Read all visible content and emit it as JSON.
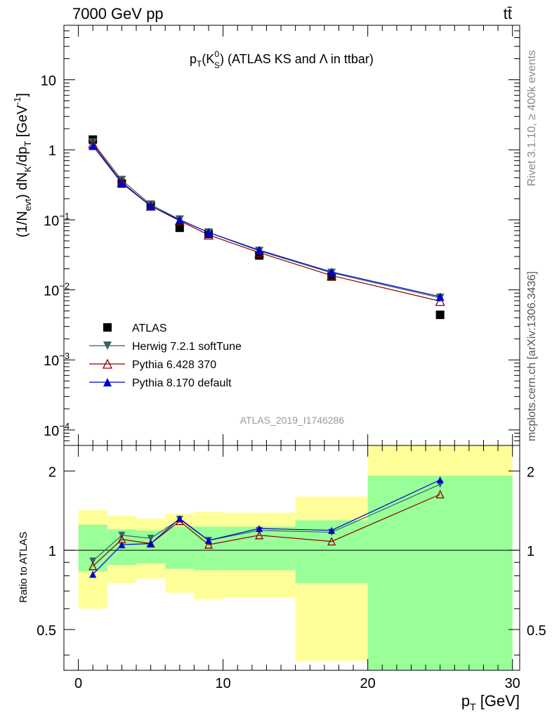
{
  "header": {
    "left_label": "7000 GeV pp",
    "right_label": "tt̄"
  },
  "side_text": {
    "rivet": "Rivet 3.1.10, ≥ 400k events",
    "mcplots": "mcplots.cern.ch [arXiv:1306.3436]"
  },
  "chart_data": [
    {
      "type": "line",
      "name": "main",
      "title": "pT(K0S) (ATLAS KS and Λ in ttbar)",
      "title_parts": {
        "p": "p",
        "T": "T",
        "paren_open": "(K",
        "zero": "0",
        "S": "S",
        "rest": ") (ATLAS KS and Λ in ttbar)"
      },
      "ylabel": "(1/Nevt) dNK/dpT [GeV-1]",
      "ylabel_parts": {
        "a": "(1/N",
        "evt": "evt",
        "b": ") dN",
        "K": "K",
        "c": "/dp",
        "T": "T",
        "d": " [GeV",
        "sup": "-1",
        "e": "]"
      },
      "yscale": "log",
      "ylim": [
        6e-05,
        60
      ],
      "xlim": [
        -1,
        30.5
      ],
      "y_ticks": [
        {
          "v": 10,
          "label": "10",
          "sup": ""
        },
        {
          "v": 1,
          "label": "1",
          "sup": ""
        },
        {
          "v": 0.1,
          "label": "10",
          "sup": "−1"
        },
        {
          "v": 0.01,
          "label": "10",
          "sup": "−2"
        },
        {
          "v": 0.001,
          "label": "10",
          "sup": "−3"
        },
        {
          "v": 0.0001,
          "label": "10",
          "sup": "−4"
        }
      ],
      "watermark": "ATLAS_2019_I1746286",
      "legend_position": "middle-left",
      "x": [
        1,
        3,
        5,
        7,
        9,
        12.5,
        17.5,
        25
      ],
      "series": [
        {
          "name": "ATLAS",
          "color": "#000000",
          "marker": "square",
          "values": [
            1.4,
            0.33,
            0.16,
            0.077,
            0.063,
            0.031,
            0.0155,
            0.0044
          ]
        },
        {
          "name": "Herwig 7.2.1 softTune",
          "color": "#336666",
          "marker": "triangle-down",
          "values": [
            1.27,
            0.37,
            0.165,
            0.101,
            0.066,
            0.036,
            0.0175,
            0.0077
          ]
        },
        {
          "name": "Pythia 6.428 370",
          "color": "#8b0000",
          "marker": "triangle-up-open",
          "values": [
            1.22,
            0.345,
            0.158,
            0.097,
            0.061,
            0.034,
            0.016,
            0.0069
          ]
        },
        {
          "name": "Pythia 8.170 default",
          "color": "#0000cc",
          "marker": "triangle-up",
          "values": [
            1.14,
            0.335,
            0.157,
            0.1,
            0.066,
            0.037,
            0.018,
            0.008
          ]
        }
      ]
    },
    {
      "type": "line",
      "name": "ratio",
      "ylabel": "Ratio to ATLAS",
      "yscale": "log",
      "ylim": [
        0.35,
        2.5
      ],
      "y_ticks": [
        {
          "v": 2,
          "label": "2"
        },
        {
          "v": 1,
          "label": "1"
        },
        {
          "v": 0.5,
          "label": "0.5"
        }
      ],
      "xlim": [
        -1,
        30.5
      ],
      "x_ticks": [
        0,
        10,
        20,
        30
      ],
      "xlabel": "pT [GeV]",
      "xlabel_parts": {
        "p": "p",
        "T": "T",
        "rest": " [GeV]"
      },
      "bands": [
        {
          "x0": 0,
          "x1": 2,
          "green": [
            0.83,
            1.25
          ],
          "yellow": [
            0.6,
            1.42
          ]
        },
        {
          "x0": 2,
          "x1": 4,
          "green": [
            0.88,
            1.2
          ],
          "yellow": [
            0.75,
            1.35
          ]
        },
        {
          "x0": 4,
          "x1": 6,
          "green": [
            0.89,
            1.19
          ],
          "yellow": [
            0.78,
            1.32
          ]
        },
        {
          "x0": 6,
          "x1": 8,
          "green": [
            0.85,
            1.23
          ],
          "yellow": [
            0.69,
            1.38
          ]
        },
        {
          "x0": 8,
          "x1": 10,
          "green": [
            0.84,
            1.23
          ],
          "yellow": [
            0.65,
            1.4
          ]
        },
        {
          "x0": 10,
          "x1": 15,
          "green": [
            0.84,
            1.23
          ],
          "yellow": [
            0.66,
            1.39
          ]
        },
        {
          "x0": 15,
          "x1": 20,
          "green": [
            0.75,
            1.3
          ],
          "yellow": [
            0.38,
            1.6
          ]
        },
        {
          "x0": 20,
          "x1": 30,
          "green": [
            0.35,
            1.92
          ],
          "yellow": [
            0.35,
            2.5
          ]
        }
      ],
      "x": [
        1,
        3,
        5,
        7,
        9,
        12.5,
        17.5,
        25
      ],
      "series": [
        {
          "name": "Herwig 7.2.1 softTune",
          "color": "#336666",
          "marker": "triangle-down",
          "values": [
            0.91,
            1.14,
            1.11,
            1.31,
            1.09,
            1.19,
            1.17,
            1.78
          ]
        },
        {
          "name": "Pythia 6.428 370",
          "color": "#8b0000",
          "marker": "triangle-up-open",
          "values": [
            0.87,
            1.1,
            1.06,
            1.29,
            1.05,
            1.14,
            1.08,
            1.63
          ]
        },
        {
          "name": "Pythia 8.170 default",
          "color": "#0000cc",
          "marker": "triangle-up",
          "values": [
            0.81,
            1.05,
            1.06,
            1.32,
            1.09,
            1.21,
            1.19,
            1.85
          ]
        }
      ]
    }
  ]
}
